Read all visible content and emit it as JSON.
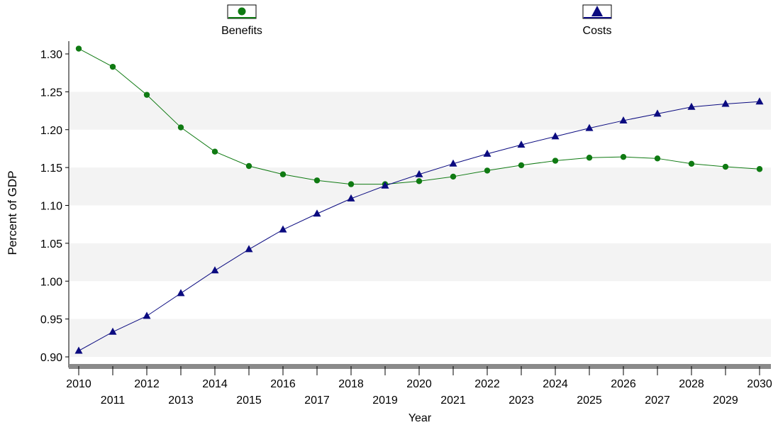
{
  "chart_data": {
    "type": "line",
    "xlabel": "Year",
    "ylabel": "Percent of GDP",
    "ylim": [
      0.9,
      1.3
    ],
    "yticks": [
      "0.90",
      "0.95",
      "1.00",
      "1.05",
      "1.10",
      "1.15",
      "1.20",
      "1.25",
      "1.30"
    ],
    "x": [
      2010,
      2011,
      2012,
      2013,
      2014,
      2015,
      2016,
      2017,
      2018,
      2019,
      2020,
      2021,
      2022,
      2023,
      2024,
      2025,
      2026,
      2027,
      2028,
      2029,
      2030
    ],
    "legend_position": "top",
    "series": [
      {
        "name": "Benefits",
        "color": "#0f7a12",
        "marker": "circle",
        "values": [
          1.307,
          1.283,
          1.246,
          1.203,
          1.171,
          1.152,
          1.141,
          1.133,
          1.128,
          1.128,
          1.132,
          1.138,
          1.146,
          1.153,
          1.159,
          1.163,
          1.164,
          1.162,
          1.155,
          1.151,
          1.148
        ]
      },
      {
        "name": "Costs",
        "color": "#0b0b80",
        "marker": "triangle",
        "values": [
          0.908,
          0.933,
          0.954,
          0.984,
          1.014,
          1.042,
          1.068,
          1.089,
          1.109,
          1.126,
          1.141,
          1.155,
          1.168,
          1.18,
          1.191,
          1.202,
          1.212,
          1.221,
          1.23,
          1.234,
          1.237
        ]
      }
    ]
  }
}
